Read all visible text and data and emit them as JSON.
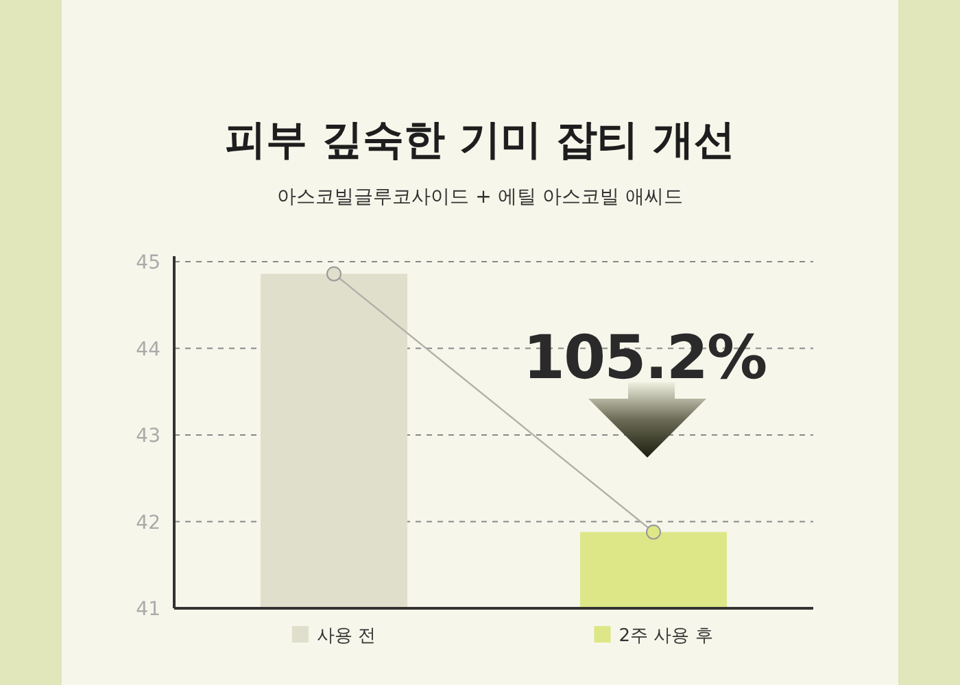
{
  "chart_data": {
    "type": "bar",
    "title": "피부 깊숙한 기미 잡티 개선",
    "subtitle": "아스코빌글루코사이드 + 에틸 아스코빌 애씨드",
    "categories": [
      "사용 전",
      "2주 사용 후"
    ],
    "series": [
      {
        "colors": [
          "#e0dfcb",
          "#dde787"
        ],
        "values": [
          44.86,
          41.88
        ]
      },
      {
        "type": "line",
        "color": "#b0b0a8",
        "values": [
          44.86,
          41.88
        ]
      }
    ],
    "annotations": [
      "105.2%"
    ],
    "ylim": [
      41,
      45
    ],
    "yticks": [
      41,
      42,
      43,
      44,
      45
    ],
    "grid": "y",
    "marker": "circle",
    "line_style": "solid"
  }
}
